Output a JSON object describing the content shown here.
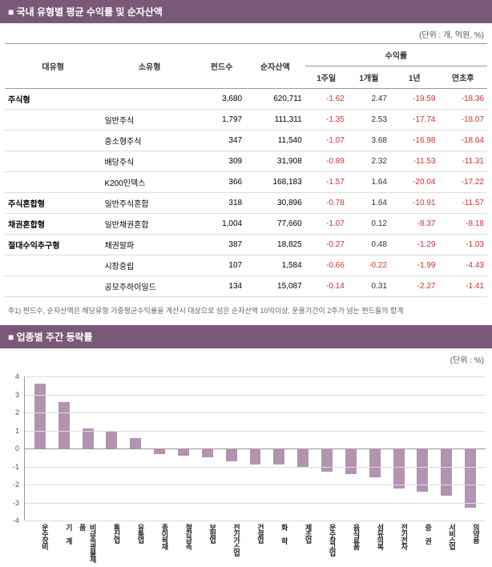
{
  "section1": {
    "title": "■ 국내 유형별 평균 수익률 및 순자산액",
    "unit": "(단위 : 개, 억원, %)",
    "headers": {
      "lcat": "대유형",
      "scat": "소유형",
      "nfunds": "펀드수",
      "nav": "순자산액",
      "ret_group": "수익률",
      "r1w": "1주일",
      "r1m": "1개월",
      "r1y": "1년",
      "rytd": "연초후"
    },
    "rows": [
      {
        "lcat": "주식형",
        "scat": "",
        "nfunds": "3,680",
        "nav": "620,711",
        "r1w": "-1.62",
        "r1m": "2.47",
        "r1y": "-19.59",
        "rytd": "-18.36"
      },
      {
        "lcat": "",
        "scat": "일반주식",
        "nfunds": "1,797",
        "nav": "111,311",
        "r1w": "-1.35",
        "r1m": "2.53",
        "r1y": "-17.74",
        "rytd": "-18.07"
      },
      {
        "lcat": "",
        "scat": "중소형주식",
        "nfunds": "347",
        "nav": "11,540",
        "r1w": "-1.07",
        "r1m": "3.68",
        "r1y": "-16.98",
        "rytd": "-18.64"
      },
      {
        "lcat": "",
        "scat": "배당주식",
        "nfunds": "309",
        "nav": "31,908",
        "r1w": "-0.89",
        "r1m": "2.32",
        "r1y": "-11.53",
        "rytd": "-11.31"
      },
      {
        "lcat": "",
        "scat": "K200인덱스",
        "nfunds": "366",
        "nav": "168,183",
        "r1w": "-1.57",
        "r1m": "1.64",
        "r1y": "-20.04",
        "rytd": "-17.22"
      },
      {
        "lcat": "주식혼합형",
        "scat": "일반주식혼합",
        "nfunds": "318",
        "nav": "30,896",
        "r1w": "-0.78",
        "r1m": "1.64",
        "r1y": "-10.91",
        "rytd": "-11.57"
      },
      {
        "lcat": "채권혼합형",
        "scat": "일반채권혼합",
        "nfunds": "1,004",
        "nav": "77,660",
        "r1w": "-1.07",
        "r1m": "0.12",
        "r1y": "-8.37",
        "rytd": "-8.18"
      },
      {
        "lcat": "절대수익추구형",
        "scat": "채권알파",
        "nfunds": "387",
        "nav": "18,825",
        "r1w": "-0.27",
        "r1m": "0.48",
        "r1y": "-1.29",
        "rytd": "-1.03"
      },
      {
        "lcat": "",
        "scat": "시장중립",
        "nfunds": "107",
        "nav": "1,584",
        "r1w": "-0.66",
        "r1m": "-0.22",
        "r1y": "-1.99",
        "rytd": "-4.43"
      },
      {
        "lcat": "",
        "scat": "공모주하이일드",
        "nfunds": "134",
        "nav": "15,087",
        "r1w": "-0.14",
        "r1m": "0.31",
        "r1y": "-2.27",
        "rytd": "-1.41"
      }
    ],
    "footnote": "주1) 펀드수, 순자산액은 해당유형 가중평균수익률을 계산시 대상으로 삼은 순자산액 10억이상, 운용기간이 2주가 넘는 펀드들의 합계"
  },
  "section2": {
    "title": "■ 업종별 주간 등락률",
    "unit": "(단위 : %)",
    "chart": {
      "type": "bar",
      "ylim": [
        -4,
        4
      ],
      "yticks": [
        -4,
        -3,
        -2,
        -1,
        0,
        1,
        2,
        3,
        4
      ],
      "bar_color": "#b393b1",
      "grid_color": "#dddddd",
      "axis_color": "#999999",
      "categories": [
        "운수장비",
        "기 계",
        "비금속광물제품",
        "통신업",
        "유통업",
        "종이목재",
        "철강금속",
        "보험업",
        "전기가스업",
        "건설업",
        "화 학",
        "제조업",
        "운수창고업",
        "음식료품",
        "섬유의복",
        "전기전자",
        "증 권",
        "서비스업",
        "의약품"
      ],
      "values": [
        3.6,
        2.6,
        1.1,
        1.0,
        0.6,
        -0.3,
        -0.4,
        -0.5,
        -0.7,
        -0.9,
        -0.9,
        -1.0,
        -1.3,
        -1.4,
        -1.6,
        -2.2,
        -2.4,
        -2.6,
        -3.3
      ]
    }
  }
}
